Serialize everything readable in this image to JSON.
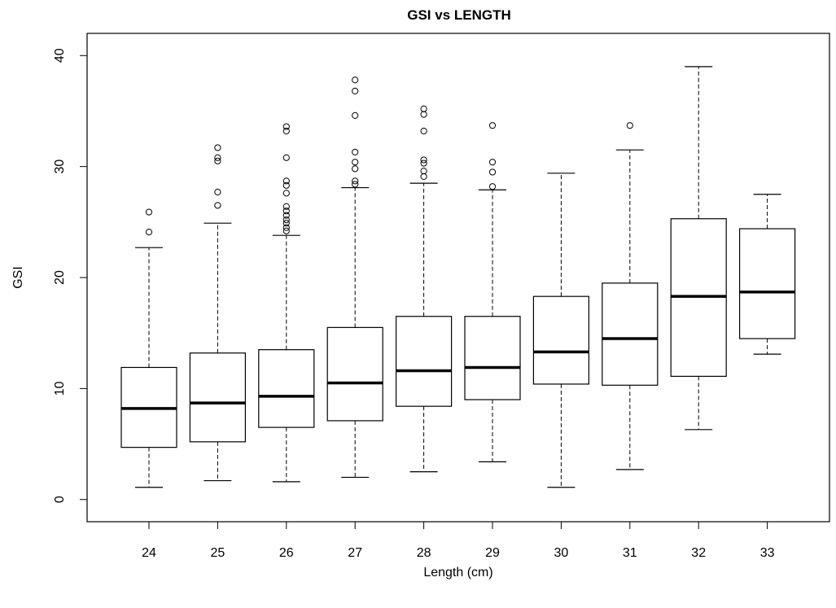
{
  "chart_data": {
    "type": "boxplot",
    "title": "GSI vs LENGTH",
    "xlabel": "Length (cm)",
    "ylabel": "GSI",
    "ylim": [
      -2,
      42
    ],
    "yticks": [
      0,
      10,
      20,
      30,
      40
    ],
    "grid": false,
    "colors": {
      "box": "#000000",
      "background": "#ffffff"
    },
    "categories": [
      "24",
      "25",
      "26",
      "27",
      "28",
      "29",
      "30",
      "31",
      "32",
      "33"
    ],
    "boxes": [
      {
        "category": "24",
        "whisker_low": 1.1,
        "q1": 4.7,
        "median": 8.2,
        "q3": 11.9,
        "whisker_high": 22.7,
        "outliers": [
          24.1,
          25.9
        ]
      },
      {
        "category": "25",
        "whisker_low": 1.7,
        "q1": 5.2,
        "median": 8.7,
        "q3": 13.2,
        "whisker_high": 24.9,
        "outliers": [
          26.5,
          27.7,
          30.5,
          30.8,
          31.7
        ]
      },
      {
        "category": "26",
        "whisker_low": 1.6,
        "q1": 6.5,
        "median": 9.3,
        "q3": 13.5,
        "whisker_high": 23.8,
        "outliers": [
          24.2,
          24.5,
          24.9,
          25.2,
          25.6,
          26.0,
          26.4,
          27.6,
          28.3,
          28.7,
          30.8,
          33.2,
          33.6
        ]
      },
      {
        "category": "27",
        "whisker_low": 2.0,
        "q1": 7.1,
        "median": 10.5,
        "q3": 15.5,
        "whisker_high": 28.1,
        "outliers": [
          28.4,
          28.7,
          29.8,
          30.4,
          31.3,
          34.6,
          36.8,
          37.8
        ]
      },
      {
        "category": "28",
        "whisker_low": 2.5,
        "q1": 8.4,
        "median": 11.6,
        "q3": 16.5,
        "whisker_high": 28.5,
        "outliers": [
          29.1,
          29.6,
          30.3,
          30.6,
          33.2,
          34.7,
          35.2
        ]
      },
      {
        "category": "29",
        "whisker_low": 3.4,
        "q1": 9.0,
        "median": 11.9,
        "q3": 16.5,
        "whisker_high": 27.9,
        "outliers": [
          28.2,
          29.5,
          30.4,
          33.7
        ]
      },
      {
        "category": "30",
        "whisker_low": 1.1,
        "q1": 10.4,
        "median": 13.3,
        "q3": 18.3,
        "whisker_high": 29.4,
        "outliers": []
      },
      {
        "category": "31",
        "whisker_low": 2.7,
        "q1": 10.3,
        "median": 14.5,
        "q3": 19.5,
        "whisker_high": 31.5,
        "outliers": [
          33.7
        ]
      },
      {
        "category": "32",
        "whisker_low": 6.3,
        "q1": 11.1,
        "median": 18.3,
        "q3": 25.3,
        "whisker_high": 39.0,
        "outliers": []
      },
      {
        "category": "33",
        "whisker_low": 13.1,
        "q1": 14.5,
        "median": 18.7,
        "q3": 24.4,
        "whisker_high": 27.5,
        "outliers": []
      }
    ]
  }
}
